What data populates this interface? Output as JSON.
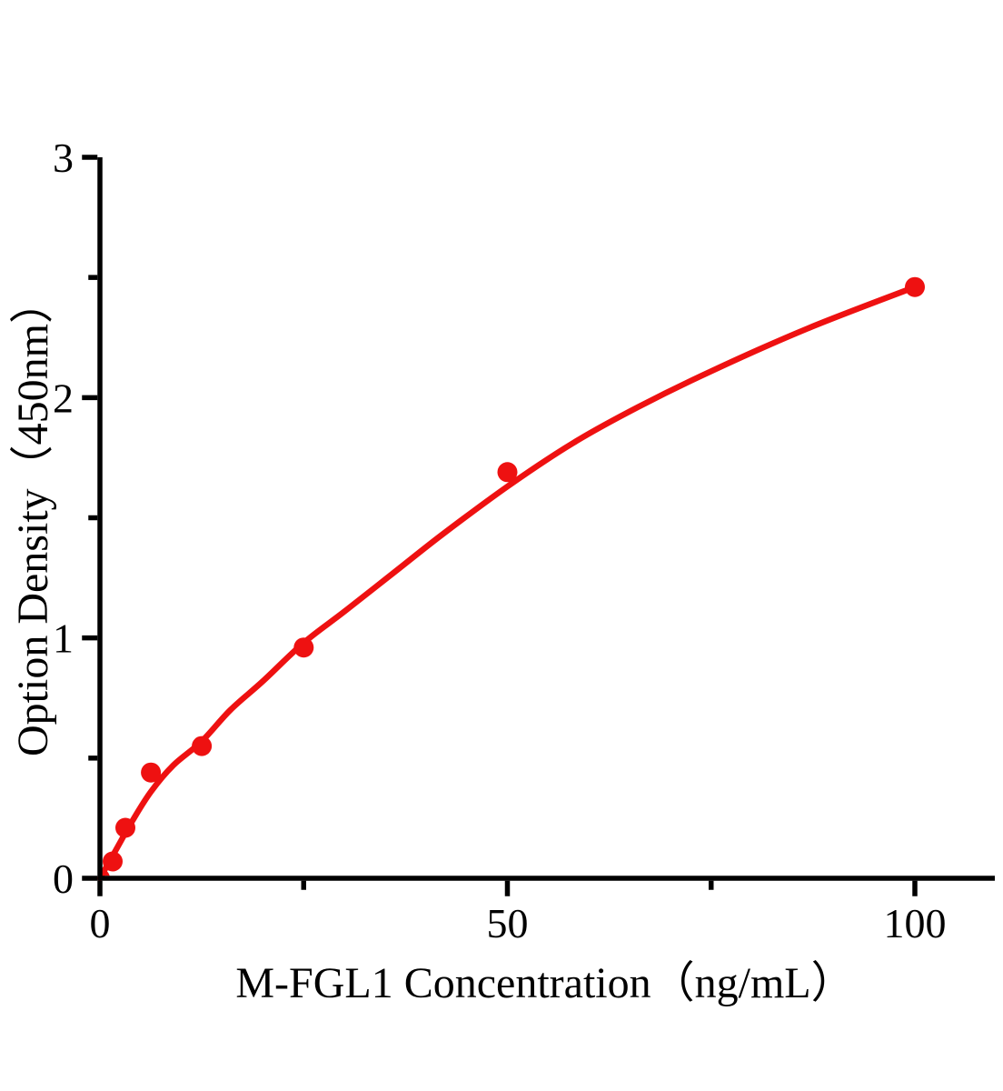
{
  "figure": {
    "background_color": "#ffffff",
    "axis_color": "#000000",
    "accent_color": "#ee1111"
  },
  "chart_data": {
    "type": "scatter",
    "title": "",
    "xlabel": "M-FGL1 Concentration（ng/mL）",
    "ylabel": "Option Density（450nm）",
    "xlim": [
      0,
      110
    ],
    "ylim": [
      0,
      3
    ],
    "grid": false,
    "legend": false,
    "x_major_ticks": [
      0,
      50,
      100
    ],
    "x_minor_ticks": [
      25,
      75
    ],
    "y_major_ticks": [
      0,
      1,
      2,
      3
    ],
    "y_minor_ticks": [
      0.5,
      1.5,
      2.5
    ],
    "x_tick_labels": [
      "0",
      "50",
      "100"
    ],
    "y_tick_labels": [
      "0",
      "1",
      "2",
      "3"
    ],
    "series": [
      {
        "name": "standard-points",
        "type": "scatter",
        "marker": "circle",
        "color": "#ee1111",
        "x": [
          0,
          1.5625,
          3.125,
          6.25,
          12.5,
          25,
          50,
          100
        ],
        "y": [
          0,
          0.07,
          0.21,
          0.44,
          0.55,
          0.96,
          1.69,
          2.46
        ]
      },
      {
        "name": "fitted-curve",
        "type": "line",
        "color": "#ee1111",
        "x": [
          0,
          2,
          4,
          6.25,
          9,
          12.5,
          16,
          20,
          25,
          30,
          36,
          42,
          50,
          58,
          66,
          75,
          87,
          100
        ],
        "y": [
          0,
          0.12,
          0.24,
          0.36,
          0.47,
          0.57,
          0.7,
          0.82,
          0.98,
          1.11,
          1.27,
          1.43,
          1.63,
          1.81,
          1.96,
          2.11,
          2.29,
          2.46
        ]
      }
    ]
  }
}
